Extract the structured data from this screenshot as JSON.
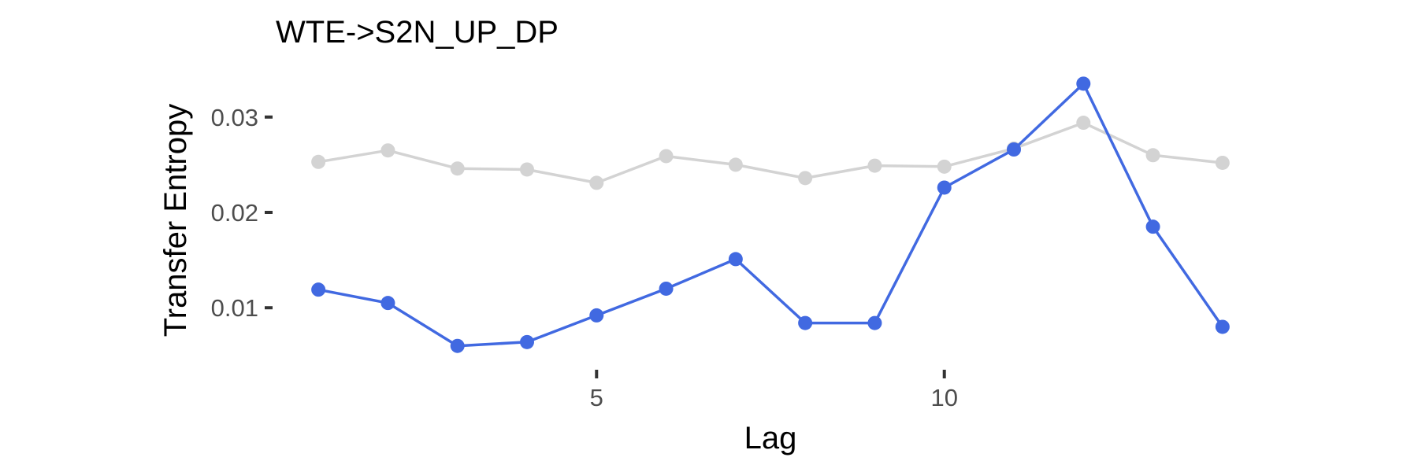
{
  "chart_data": {
    "type": "line",
    "title": "WTE->S2N_UP_DP",
    "xlabel": "Lag",
    "ylabel": "Transfer Entropy",
    "x": [
      1,
      2,
      3,
      4,
      5,
      6,
      7,
      8,
      9,
      10,
      11,
      12,
      13,
      14
    ],
    "xlim": [
      0.5,
      14.5
    ],
    "ylim": [
      0.0035,
      0.0365
    ],
    "x_ticks": [
      5,
      10
    ],
    "x_tick_labels": [
      "5",
      "10"
    ],
    "y_ticks": [
      0.01,
      0.02,
      0.03
    ],
    "y_tick_labels": [
      "0.01",
      "0.02",
      "0.03"
    ],
    "grid": false,
    "legend": "none",
    "series": [
      {
        "color": "#d3d3d3",
        "values": [
          0.0253,
          0.0265,
          0.0246,
          0.0245,
          0.0231,
          0.0259,
          0.025,
          0.0236,
          0.0249,
          0.0248,
          0.0267,
          0.0294,
          0.026,
          0.0252
        ]
      },
      {
        "color": "#4169e1",
        "values": [
          0.0119,
          0.0105,
          0.006,
          0.0064,
          0.0092,
          0.012,
          0.0151,
          0.0084,
          0.0084,
          0.0226,
          0.0266,
          0.0335,
          0.0185,
          0.008
        ]
      }
    ]
  }
}
